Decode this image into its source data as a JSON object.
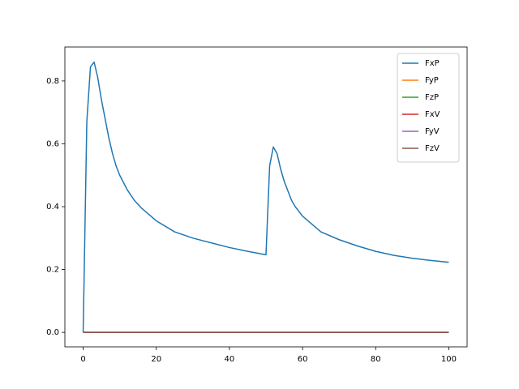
{
  "chart_data": {
    "type": "line",
    "x": [
      0,
      1,
      2,
      3,
      4,
      5,
      6,
      7,
      8,
      9,
      10,
      12,
      14,
      16,
      18,
      20,
      25,
      30,
      35,
      40,
      45,
      50,
      51,
      52,
      53,
      54,
      55,
      56,
      57,
      58,
      60,
      62,
      65,
      70,
      75,
      80,
      85,
      90,
      95,
      100
    ],
    "series": [
      {
        "name": "FxP",
        "color": "#1f77b4",
        "values": [
          0,
          0.67,
          0.845,
          0.86,
          0.81,
          0.74,
          0.68,
          0.62,
          0.57,
          0.53,
          0.5,
          0.455,
          0.42,
          0.395,
          0.375,
          0.355,
          0.32,
          0.3,
          0.285,
          0.27,
          0.258,
          0.247,
          0.53,
          0.59,
          0.57,
          0.52,
          0.48,
          0.45,
          0.42,
          0.4,
          0.37,
          0.35,
          0.32,
          0.295,
          0.275,
          0.258,
          0.245,
          0.236,
          0.229,
          0.223
        ]
      },
      {
        "name": "FyP",
        "color": "#ff7f0e",
        "values": [
          0,
          0,
          0,
          0,
          0,
          0,
          0,
          0,
          0,
          0,
          0,
          0,
          0,
          0,
          0,
          0,
          0,
          0,
          0,
          0,
          0,
          0,
          0,
          0,
          0,
          0,
          0,
          0,
          0,
          0,
          0,
          0,
          0,
          0,
          0,
          0,
          0,
          0,
          0,
          0
        ]
      },
      {
        "name": "FzP",
        "color": "#2ca02c",
        "values": [
          0,
          0,
          0,
          0,
          0,
          0,
          0,
          0,
          0,
          0,
          0,
          0,
          0,
          0,
          0,
          0,
          0,
          0,
          0,
          0,
          0,
          0,
          0,
          0,
          0,
          0,
          0,
          0,
          0,
          0,
          0,
          0,
          0,
          0,
          0,
          0,
          0,
          0,
          0,
          0
        ]
      },
      {
        "name": "FxV",
        "color": "#d62728",
        "values": [
          0,
          0,
          0,
          0,
          0,
          0,
          0,
          0,
          0,
          0,
          0,
          0,
          0,
          0,
          0,
          0,
          0,
          0,
          0,
          0,
          0,
          0,
          0,
          0,
          0,
          0,
          0,
          0,
          0,
          0,
          0,
          0,
          0,
          0,
          0,
          0,
          0,
          0,
          0,
          0
        ]
      },
      {
        "name": "FyV",
        "color": "#9467bd",
        "values": [
          0,
          0,
          0,
          0,
          0,
          0,
          0,
          0,
          0,
          0,
          0,
          0,
          0,
          0,
          0,
          0,
          0,
          0,
          0,
          0,
          0,
          0,
          0,
          0,
          0,
          0,
          0,
          0,
          0,
          0,
          0,
          0,
          0,
          0,
          0,
          0,
          0,
          0,
          0,
          0
        ]
      },
      {
        "name": "FzV",
        "color": "#8c564b",
        "values": [
          0,
          0,
          0,
          0,
          0,
          0,
          0,
          0,
          0,
          0,
          0,
          0,
          0,
          0,
          0,
          0,
          0,
          0,
          0,
          0,
          0,
          0,
          0,
          0,
          0,
          0,
          0,
          0,
          0,
          0,
          0,
          0,
          0,
          0,
          0,
          0,
          0,
          0,
          0,
          0
        ]
      }
    ],
    "xlim": [
      -5,
      105
    ],
    "xticks": [
      0,
      20,
      40,
      60,
      80,
      100
    ],
    "ylim": [
      -0.046,
      0.908
    ],
    "yticks": [
      {
        "value": 0,
        "label": "0.0"
      },
      {
        "value": 0.2,
        "label": "0.2"
      },
      {
        "value": 0.4,
        "label": "0.4"
      },
      {
        "value": 0.6,
        "label": "0.6"
      },
      {
        "value": 0.8,
        "label": "0.8"
      }
    ],
    "grid": false,
    "legend": "upper right"
  }
}
